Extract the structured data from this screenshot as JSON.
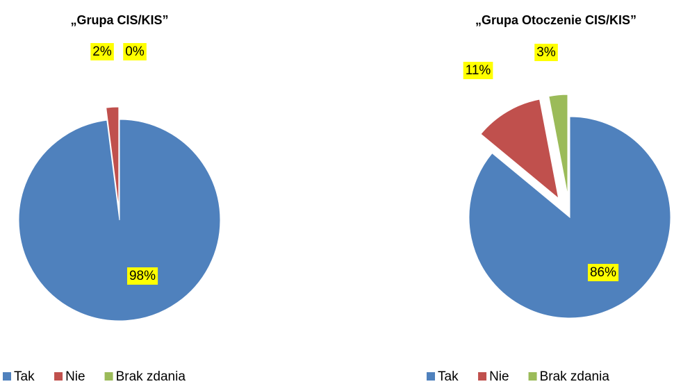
{
  "chart_data": [
    {
      "type": "pie",
      "title": "„Grupa CIS/KIS”",
      "categories": [
        "Tak",
        "Nie",
        "Brak zdania"
      ],
      "values": [
        98,
        2,
        0
      ],
      "value_labels": [
        "98%",
        "2%",
        "0%"
      ],
      "colors": [
        "#4f81bd",
        "#c0504d",
        "#9bbb59"
      ]
    },
    {
      "type": "pie",
      "title": "„Grupa Otoczenie CIS/KIS”",
      "categories": [
        "Tak",
        "Nie",
        "Brak zdania"
      ],
      "values": [
        86,
        11,
        3
      ],
      "value_labels": [
        "86%",
        "11%",
        "3%"
      ],
      "colors": [
        "#4f81bd",
        "#c0504d",
        "#9bbb59"
      ]
    }
  ]
}
